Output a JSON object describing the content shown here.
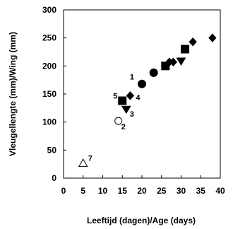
{
  "chart_data": {
    "type": "scatter",
    "xlabel": "Leeftijd (dagen)/Age (days)",
    "ylabel": "Vleugellengte (mm)/Wing (mm)",
    "xlim": [
      0,
      40
    ],
    "ylim": [
      0,
      300
    ],
    "x_ticks": [
      0,
      5,
      10,
      15,
      20,
      25,
      30,
      35,
      40
    ],
    "y_ticks": [
      0,
      50,
      100,
      150,
      200,
      250,
      300
    ],
    "grid": false,
    "legend": "none",
    "series": [
      {
        "marker": "circle-filled",
        "points": [
          {
            "x": 20,
            "y": 168
          },
          {
            "x": 23,
            "y": 188
          }
        ]
      },
      {
        "marker": "square-filled",
        "points": [
          {
            "x": 15,
            "y": 138
          },
          {
            "x": 26,
            "y": 200
          },
          {
            "x": 31,
            "y": 230
          }
        ]
      },
      {
        "marker": "diamond-filled",
        "points": [
          {
            "x": 17,
            "y": 147
          },
          {
            "x": 27,
            "y": 207
          },
          {
            "x": 28,
            "y": 207
          },
          {
            "x": 33,
            "y": 243
          },
          {
            "x": 38,
            "y": 250
          }
        ]
      },
      {
        "marker": "triangle-down-filled",
        "points": [
          {
            "x": 16,
            "y": 122
          },
          {
            "x": 30,
            "y": 208
          }
        ]
      },
      {
        "marker": "circle-open",
        "points": [
          {
            "x": 14,
            "y": 102
          }
        ]
      },
      {
        "marker": "triangle-up-open",
        "points": [
          {
            "x": 5,
            "y": 27
          }
        ]
      }
    ],
    "annotations": [
      {
        "text": "1",
        "x": 20,
        "y": 168
      },
      {
        "text": "2",
        "x": 14,
        "y": 102
      },
      {
        "text": "3",
        "x": 16,
        "y": 122
      },
      {
        "text": "4",
        "x": 17,
        "y": 147
      },
      {
        "text": "5",
        "x": 15,
        "y": 138
      },
      {
        "text": "7",
        "x": 5,
        "y": 27
      }
    ]
  }
}
